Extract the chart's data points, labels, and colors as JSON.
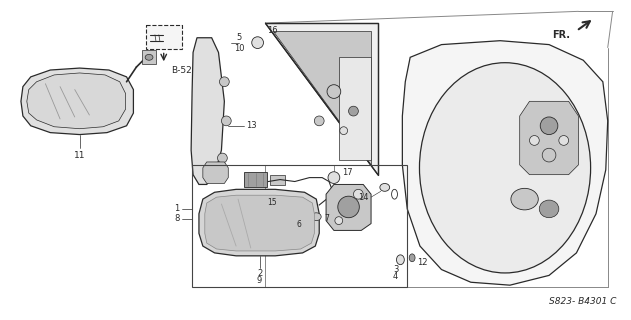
{
  "bg_color": "#ffffff",
  "diagram_note": "S823- B4301 C",
  "figsize": [
    6.31,
    3.2
  ],
  "dpi": 100,
  "line_color": "#2a2a2a",
  "fill_light": "#e0e0e0",
  "fill_mid": "#c8c8c8",
  "fill_dark": "#a0a0a0"
}
